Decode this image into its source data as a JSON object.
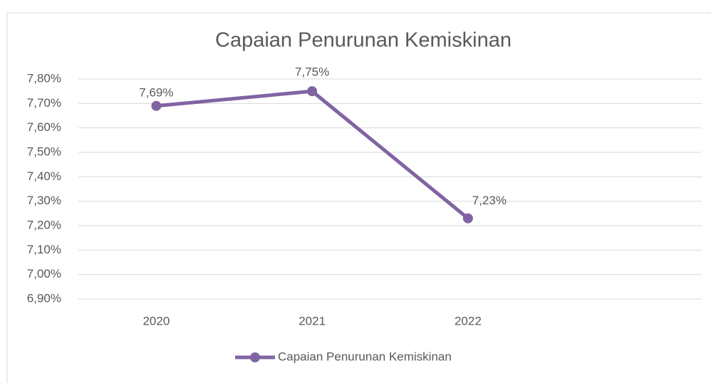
{
  "chart_data": {
    "type": "line",
    "title": "Capaian Penurunan Kemiskinan",
    "categories": [
      "2020",
      "2021",
      "2022",
      null
    ],
    "series": [
      {
        "name": "Capaian Penurunan Kemiskinan",
        "color": "#8064a2",
        "values": [
          7.69,
          7.75,
          7.23,
          null
        ],
        "value_labels": [
          "7,69%",
          "7,75%",
          "7,23%",
          null
        ]
      }
    ],
    "ylim": [
      6.9,
      7.8
    ],
    "yticks": [
      {
        "value": 6.9,
        "label": "6,90%"
      },
      {
        "value": 7.0,
        "label": "7,00%"
      },
      {
        "value": 7.1,
        "label": "7,10%"
      },
      {
        "value": 7.2,
        "label": "7,20%"
      },
      {
        "value": 7.3,
        "label": "7,30%"
      },
      {
        "value": 7.4,
        "label": "7,40%"
      },
      {
        "value": 7.5,
        "label": "7,50%"
      },
      {
        "value": 7.6,
        "label": "7,60%"
      },
      {
        "value": 7.7,
        "label": "7,70%"
      },
      {
        "value": 7.8,
        "label": "7,80%"
      }
    ],
    "grid": true,
    "legend": "bottom"
  }
}
